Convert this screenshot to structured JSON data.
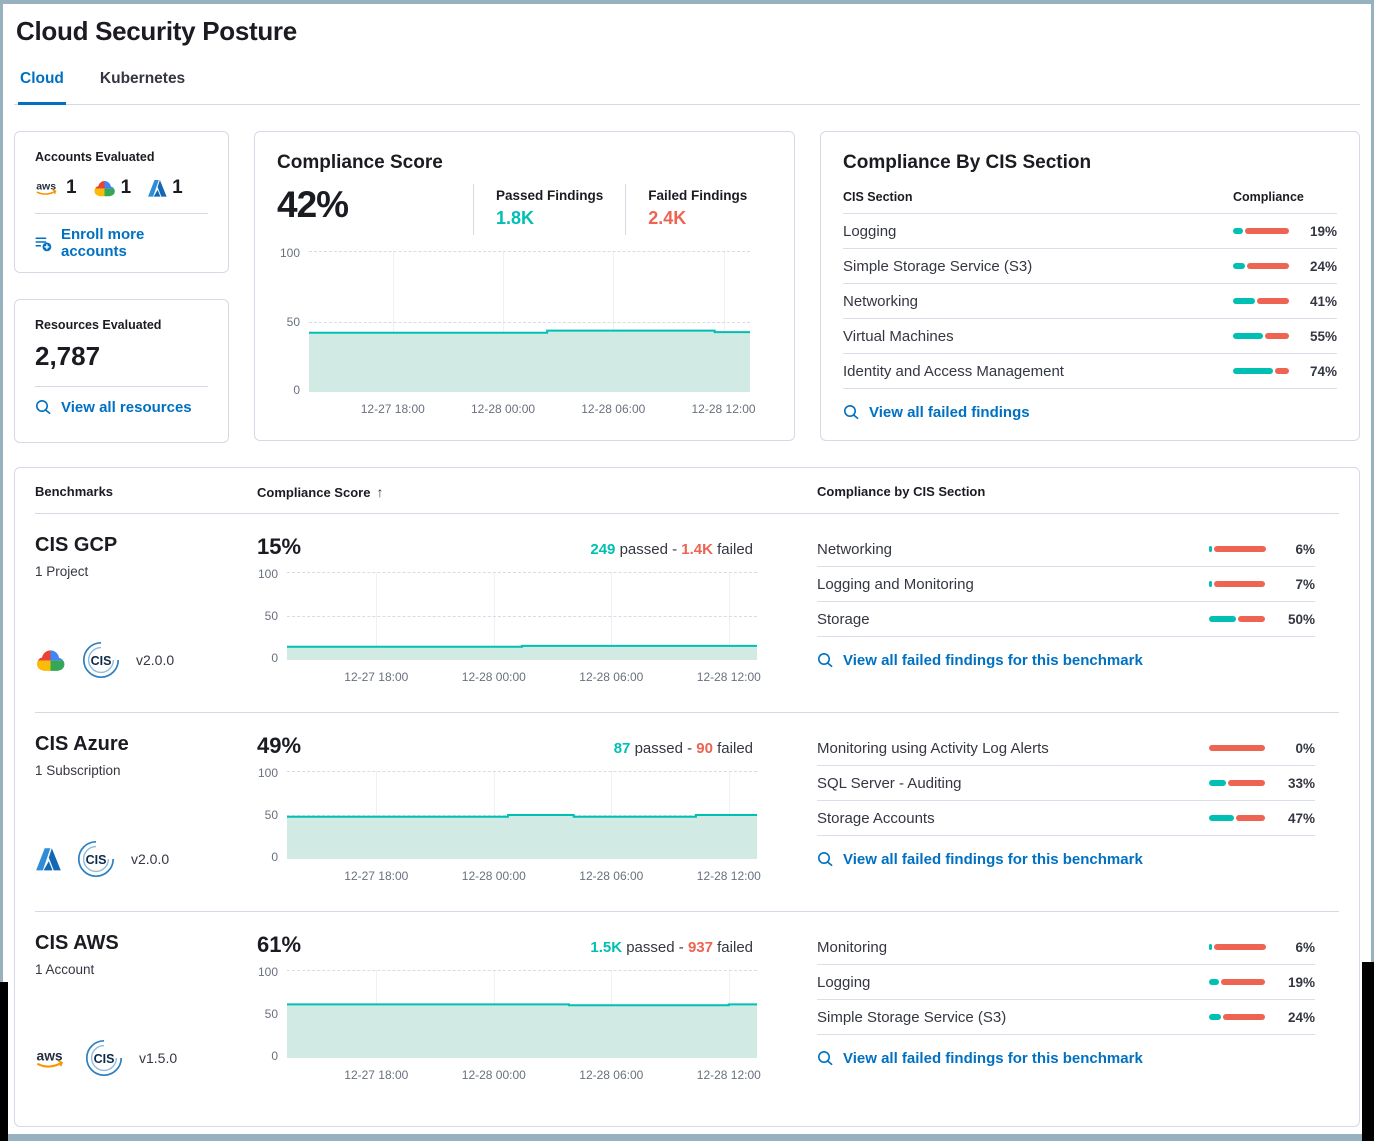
{
  "page": {
    "title": "Cloud Security Posture"
  },
  "tabs": [
    {
      "label": "Cloud",
      "active": true
    },
    {
      "label": "Kubernetes",
      "active": false
    }
  ],
  "accounts_card": {
    "title": "Accounts Evaluated",
    "providers": [
      {
        "name": "aws",
        "count": "1"
      },
      {
        "name": "gcp",
        "count": "1"
      },
      {
        "name": "azure",
        "count": "1"
      }
    ],
    "link_label": "Enroll more accounts"
  },
  "resources_card": {
    "title": "Resources Evaluated",
    "count": "2,787",
    "link_label": "View all resources"
  },
  "score_card": {
    "title": "Compliance Score",
    "score": "42%",
    "passed_label": "Passed Findings",
    "passed_value": "1.8K",
    "failed_label": "Failed Findings",
    "failed_value": "2.4K",
    "trend": [
      [
        0,
        42
      ],
      [
        54,
        42
      ],
      [
        54,
        43.5
      ],
      [
        92,
        43.5
      ],
      [
        92,
        42.5
      ],
      [
        100,
        42.5
      ]
    ]
  },
  "trend_chart": {
    "y_ticks": [
      "100",
      "50",
      "0"
    ],
    "x_ticks": [
      "12-27 18:00",
      "12-28 00:00",
      "12-28 06:00",
      "12-28 12:00"
    ]
  },
  "cis_card": {
    "title": "Compliance By CIS Section",
    "col_section": "CIS Section",
    "col_compliance": "Compliance",
    "rows": [
      {
        "label": "Logging",
        "pct": 19,
        "pct_label": "19%"
      },
      {
        "label": "Simple Storage Service (S3)",
        "pct": 24,
        "pct_label": "24%"
      },
      {
        "label": "Networking",
        "pct": 41,
        "pct_label": "41%"
      },
      {
        "label": "Virtual Machines",
        "pct": 55,
        "pct_label": "55%"
      },
      {
        "label": "Identity and Access Management",
        "pct": 74,
        "pct_label": "74%"
      }
    ],
    "link_label": "View all failed findings"
  },
  "benchmarks": {
    "col_benchmarks": "Benchmarks",
    "col_score": "Compliance Score",
    "sort_arrow": "↑",
    "col_sections": "Compliance by CIS Section",
    "passed_word": "passed",
    "dash": "-",
    "failed_word": "failed",
    "row_link": "View all failed findings for this benchmark",
    "rows": [
      {
        "name": "CIS GCP",
        "subtitle": "1 Project",
        "provider": "gcp",
        "version": "v2.0.0",
        "score": "15%",
        "passed": "249",
        "failed": "1.4K",
        "trend": [
          [
            0,
            15
          ],
          [
            50,
            15
          ],
          [
            50,
            16
          ],
          [
            100,
            16
          ]
        ],
        "sections": [
          {
            "label": "Networking",
            "pct": 6,
            "pct_label": "6%"
          },
          {
            "label": "Logging and Monitoring",
            "pct": 7,
            "pct_label": "7%"
          },
          {
            "label": "Storage",
            "pct": 50,
            "pct_label": "50%"
          }
        ]
      },
      {
        "name": "CIS Azure",
        "subtitle": "1 Subscription",
        "provider": "azure",
        "version": "v2.0.0",
        "score": "49%",
        "passed": "87",
        "failed": "90",
        "trend": [
          [
            0,
            48
          ],
          [
            47,
            48
          ],
          [
            47,
            50
          ],
          [
            61,
            50
          ],
          [
            61,
            48
          ],
          [
            87,
            48
          ],
          [
            87,
            50
          ],
          [
            100,
            50
          ]
        ],
        "sections": [
          {
            "label": "Monitoring using Activity Log Alerts",
            "pct": 0,
            "pct_label": "0%"
          },
          {
            "label": "SQL Server - Auditing",
            "pct": 33,
            "pct_label": "33%"
          },
          {
            "label": "Storage Accounts",
            "pct": 47,
            "pct_label": "47%"
          }
        ]
      },
      {
        "name": "CIS AWS",
        "subtitle": "1 Account",
        "provider": "aws",
        "version": "v1.5.0",
        "score": "61%",
        "passed": "1.5K",
        "failed": "937",
        "trend": [
          [
            0,
            61
          ],
          [
            60,
            61
          ],
          [
            60,
            60
          ],
          [
            94,
            60
          ],
          [
            94,
            61
          ],
          [
            100,
            61
          ]
        ],
        "sections": [
          {
            "label": "Monitoring",
            "pct": 6,
            "pct_label": "6%"
          },
          {
            "label": "Logging",
            "pct": 19,
            "pct_label": "19%"
          },
          {
            "label": "Simple Storage Service (S3)",
            "pct": 24,
            "pct_label": "24%"
          }
        ]
      }
    ]
  },
  "colors": {
    "teal": "#00BFB3",
    "coral": "#EE6352",
    "link": "#0071C2",
    "area_fill": "#D2EAE4"
  }
}
